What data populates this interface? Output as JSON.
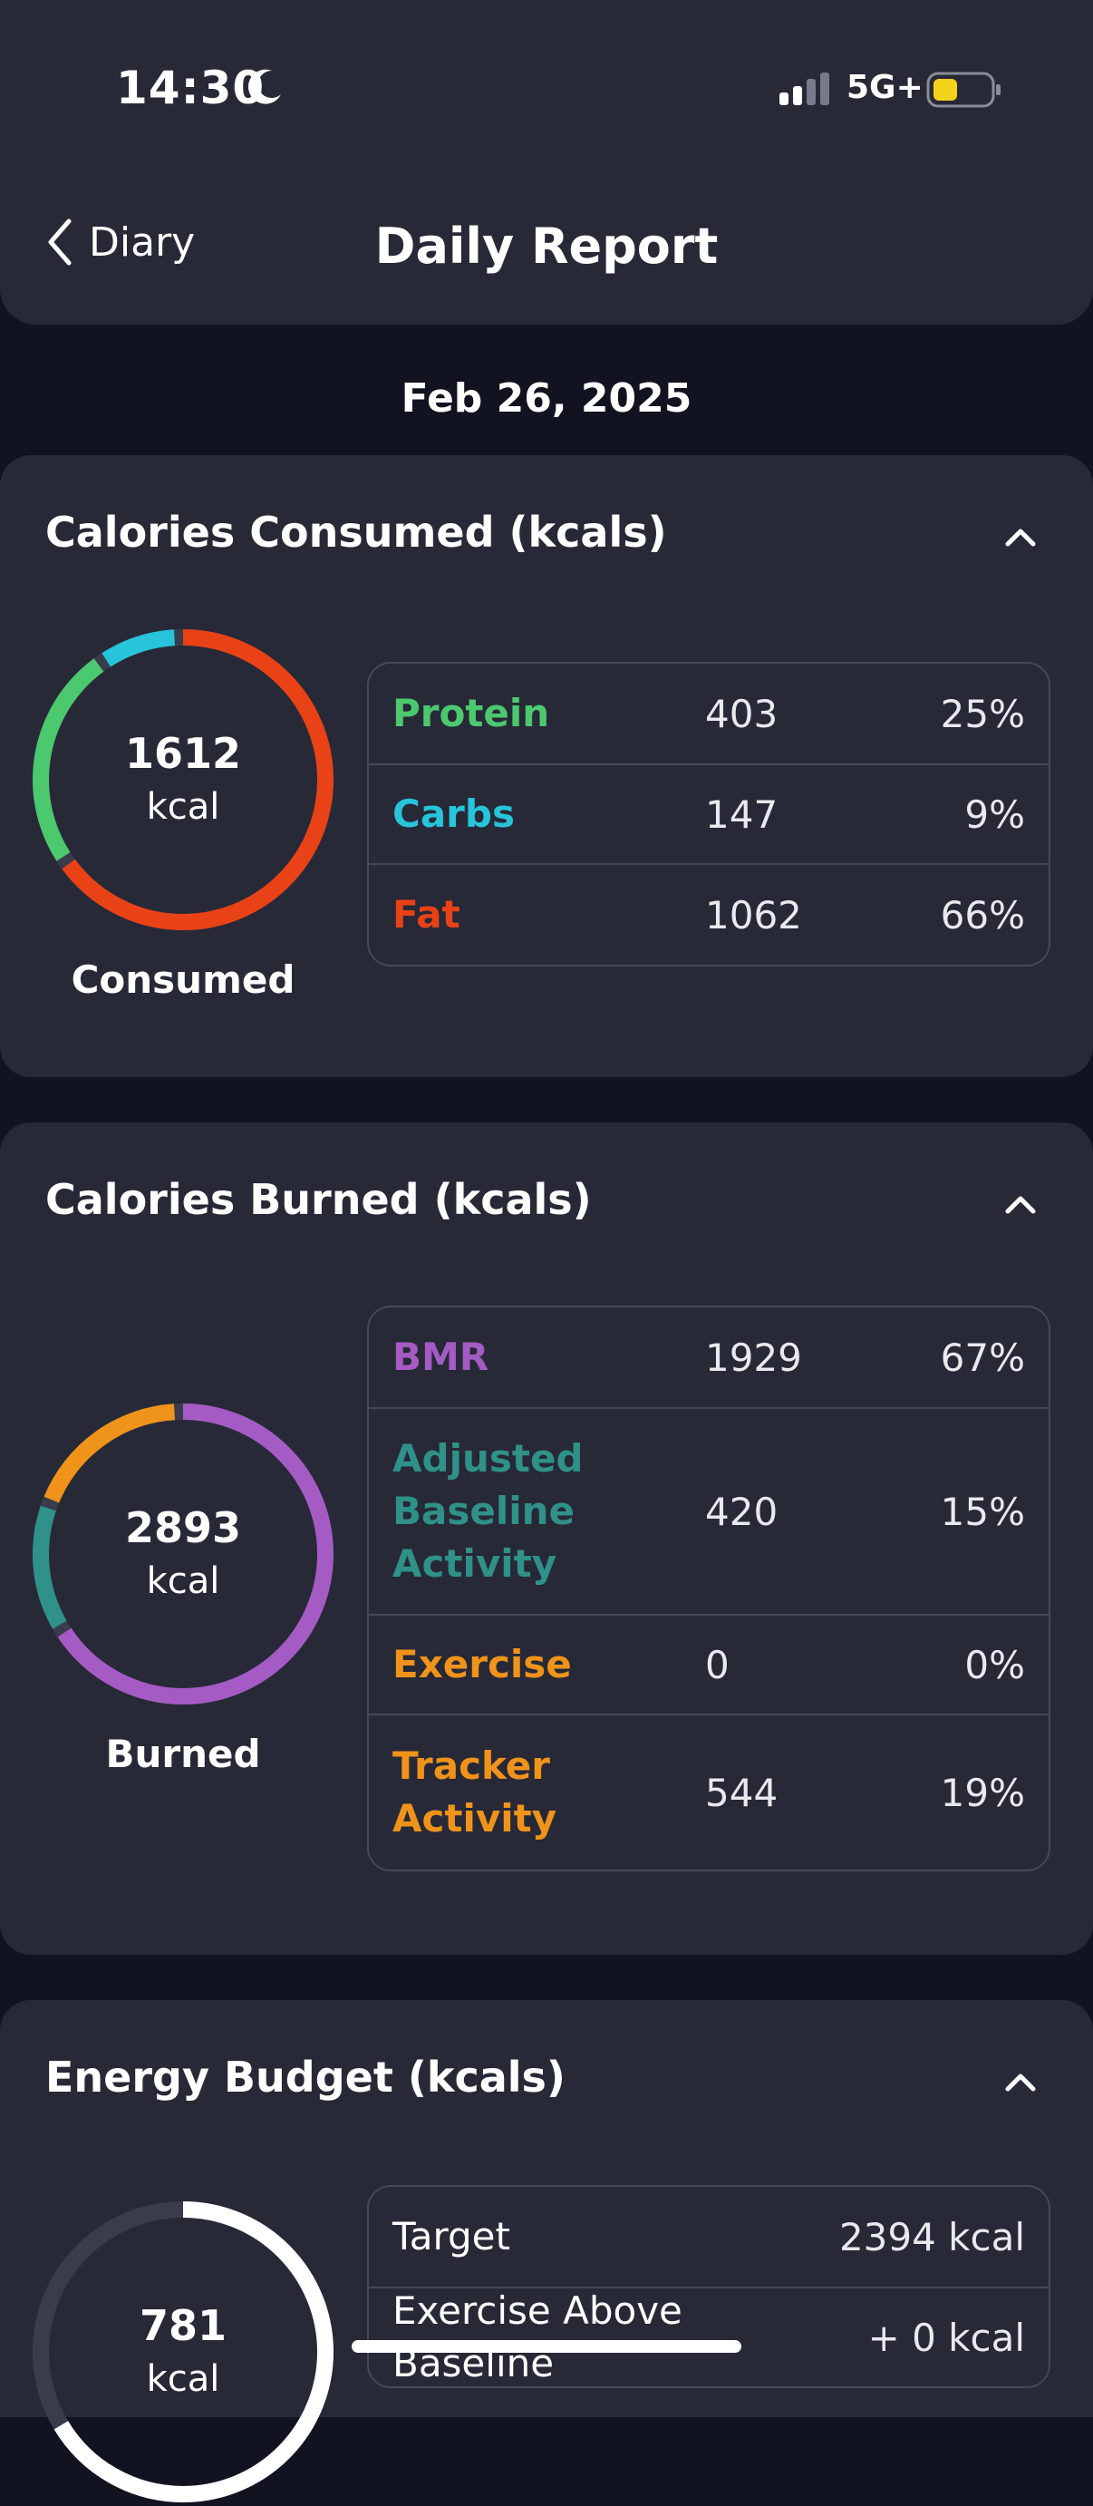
{
  "status_bar": {
    "time": "14:30",
    "network": "5G+"
  },
  "nav": {
    "back_label": "Diary",
    "title": "Daily Report"
  },
  "date": "Feb 26, 2025",
  "consumed": {
    "title": "Calories Consumed (kcals)",
    "total": "1612",
    "unit": "kcal",
    "caption": "Consumed",
    "rows": [
      {
        "name": "Protein",
        "value": "403",
        "pct": "25%",
        "color": "#4cc86e"
      },
      {
        "name": "Carbs",
        "value": "147",
        "pct": "9%",
        "color": "#27c4da"
      },
      {
        "name": "Fat",
        "value": "1062",
        "pct": "66%",
        "color": "#e84216"
      }
    ]
  },
  "burned": {
    "title": "Calories Burned (kcals)",
    "total": "2893",
    "unit": "kcal",
    "caption": "Burned",
    "rows": [
      {
        "name": "BMR",
        "value": "1929",
        "pct": "67%",
        "color": "#a55bc4"
      },
      {
        "name": "Adjusted Baseline Activity",
        "value": "420",
        "pct": "15%",
        "color": "#2f9188"
      },
      {
        "name": "Exercise",
        "value": "0",
        "pct": "0%",
        "color": "#f0931b"
      },
      {
        "name": "Tracker Activity",
        "value": "544",
        "pct": "19%",
        "color": "#f0931b"
      }
    ]
  },
  "budget": {
    "title": "Energy Budget (kcals)",
    "total": "781",
    "unit": "kcal",
    "rows": [
      {
        "name": "Target",
        "value": "2394 kcal"
      },
      {
        "name": "Exercise Above Baseline",
        "value": "+ 0 kcal"
      }
    ]
  },
  "colors": {
    "card": "#272937",
    "page": "#121320",
    "ring_track": "#3a3c4c"
  }
}
